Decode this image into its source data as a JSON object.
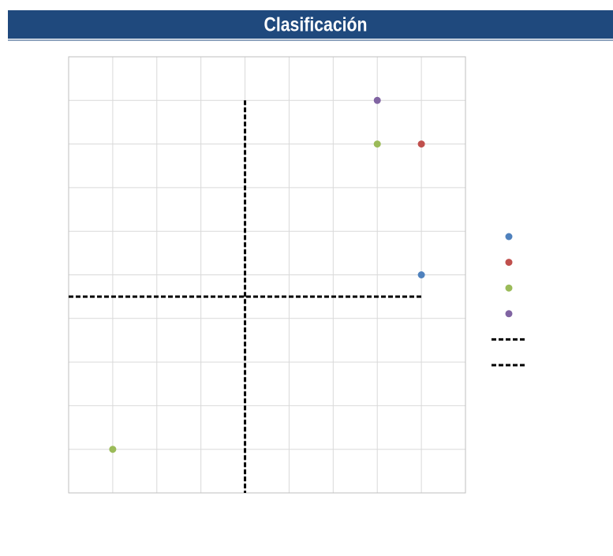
{
  "chart_data": {
    "type": "scatter",
    "title": "Clasificación",
    "xlim": [
      0,
      9
    ],
    "ylim": [
      0,
      10
    ],
    "xticks": [
      0,
      1,
      2,
      3,
      4,
      5,
      6,
      7,
      8,
      9
    ],
    "yticks": [
      0,
      1,
      2,
      3,
      4,
      5,
      6,
      7,
      8,
      9,
      10
    ],
    "grid": true,
    "legend": "right",
    "series": [
      {
        "color": "#4f81bd",
        "x": [
          8
        ],
        "values": [
          5
        ]
      },
      {
        "color": "#c0504d",
        "x": [
          8
        ],
        "values": [
          8
        ]
      },
      {
        "color": "#9bbb59",
        "x": [
          7,
          1
        ],
        "values": [
          8,
          1
        ]
      },
      {
        "color": "#8064a2",
        "x": [
          7
        ],
        "values": [
          9
        ]
      },
      {
        "color": "#000000",
        "line": "dashed",
        "x": [
          4,
          4
        ],
        "values": [
          9,
          0
        ]
      },
      {
        "color": "#000000",
        "line": "dashed",
        "x": [
          0,
          8
        ],
        "values": [
          4.5,
          4.5
        ]
      }
    ]
  }
}
